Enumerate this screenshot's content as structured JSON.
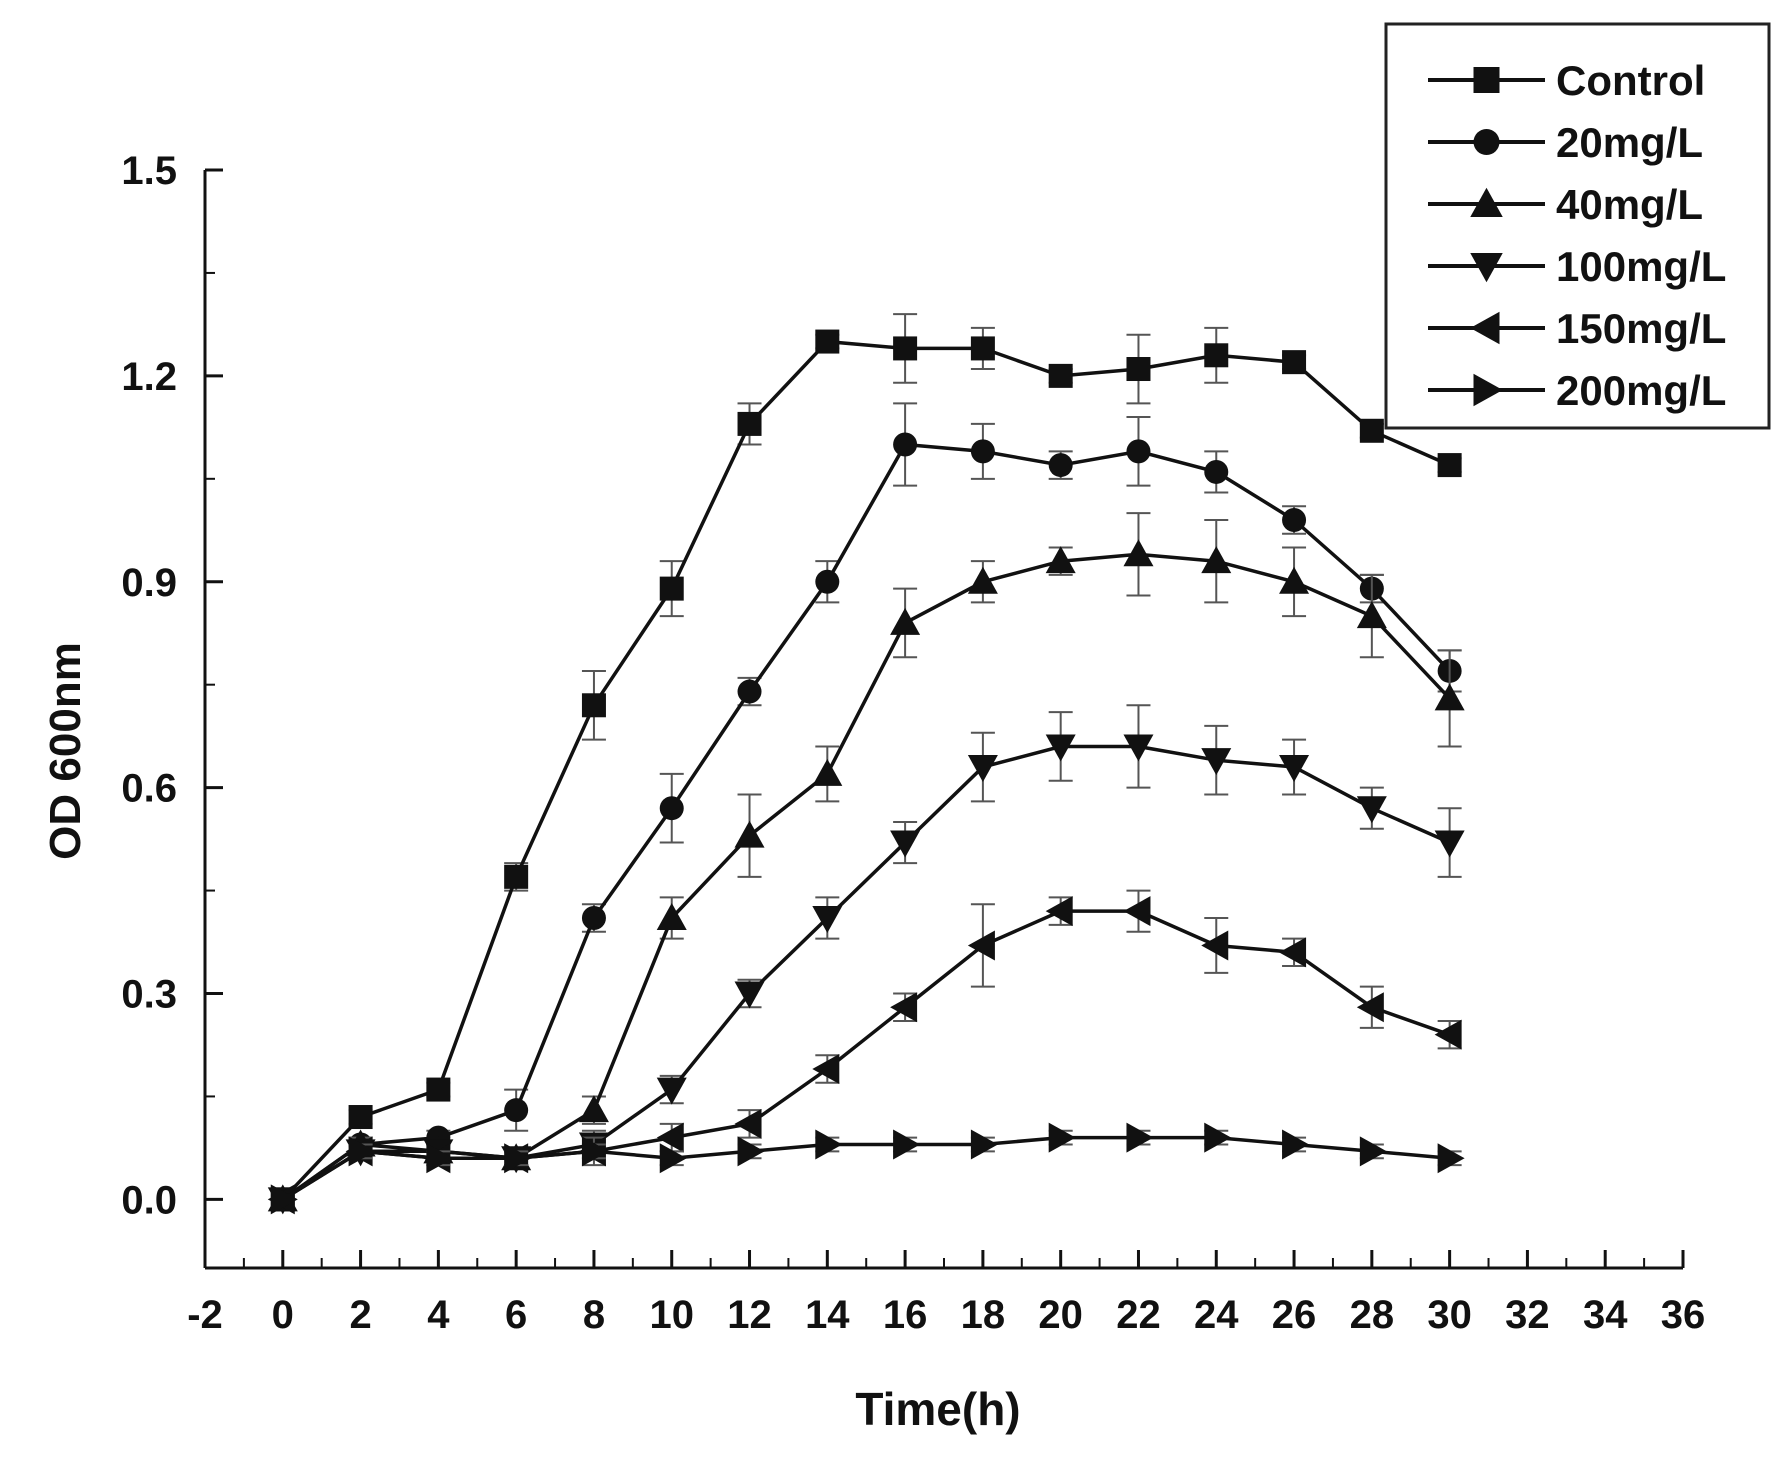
{
  "chart_data": {
    "type": "line",
    "title": "",
    "xlabel": "Time(h)",
    "ylabel": "OD 600nm",
    "xlim": [
      -2,
      36
    ],
    "ylim": [
      -0.1,
      1.5
    ],
    "xticks": [
      -2,
      0,
      2,
      4,
      6,
      8,
      10,
      12,
      14,
      16,
      18,
      20,
      22,
      24,
      26,
      28,
      30,
      32,
      34,
      36
    ],
    "xtick_labels": [
      "-2",
      "0",
      "2",
      "4",
      "6",
      "8",
      "10",
      "12",
      "14",
      "16",
      "18",
      "20",
      "22",
      "24",
      "26",
      "28",
      "30",
      "32",
      "34",
      "36"
    ],
    "yticks": [
      0.0,
      0.3,
      0.6,
      0.9,
      1.2,
      1.5
    ],
    "ytick_labels": [
      "0.0",
      "0.3",
      "0.6",
      "0.9",
      "1.2",
      "1.5"
    ],
    "grid": false,
    "legend_position": "top-right",
    "x": [
      0,
      2,
      4,
      6,
      8,
      10,
      12,
      14,
      16,
      18,
      20,
      22,
      24,
      26,
      28,
      30
    ],
    "series": [
      {
        "name": "Control",
        "marker": "square",
        "values": [
          0.0,
          0.12,
          0.16,
          0.47,
          0.72,
          0.89,
          1.13,
          1.25,
          1.24,
          1.24,
          1.2,
          1.21,
          1.23,
          1.22,
          1.12,
          1.07
        ],
        "errors": [
          0.0,
          0.01,
          0.01,
          0.02,
          0.05,
          0.04,
          0.03,
          0.01,
          0.05,
          0.03,
          0.01,
          0.05,
          0.04,
          0.01,
          0.01,
          0.01
        ]
      },
      {
        "name": "20mg/L",
        "marker": "circle",
        "values": [
          0.0,
          0.08,
          0.09,
          0.13,
          0.41,
          0.57,
          0.74,
          0.9,
          1.1,
          1.09,
          1.07,
          1.09,
          1.06,
          0.99,
          0.89,
          0.77
        ],
        "errors": [
          0.0,
          0.01,
          0.01,
          0.03,
          0.02,
          0.05,
          0.02,
          0.03,
          0.06,
          0.04,
          0.02,
          0.05,
          0.03,
          0.02,
          0.02,
          0.03
        ]
      },
      {
        "name": "40mg/L",
        "marker": "triangle-up",
        "values": [
          0.0,
          0.08,
          0.07,
          0.06,
          0.13,
          0.41,
          0.53,
          0.62,
          0.84,
          0.9,
          0.93,
          0.94,
          0.93,
          0.9,
          0.85,
          0.73
        ],
        "errors": [
          0.0,
          0.01,
          0.01,
          0.01,
          0.02,
          0.03,
          0.06,
          0.04,
          0.05,
          0.03,
          0.02,
          0.06,
          0.06,
          0.05,
          0.06,
          0.07
        ]
      },
      {
        "name": "100mg/L",
        "marker": "triangle-down",
        "values": [
          0.0,
          0.07,
          0.07,
          0.06,
          0.08,
          0.16,
          0.3,
          0.41,
          0.52,
          0.63,
          0.66,
          0.66,
          0.64,
          0.63,
          0.57,
          0.52
        ],
        "errors": [
          0.0,
          0.01,
          0.01,
          0.01,
          0.02,
          0.02,
          0.02,
          0.03,
          0.03,
          0.05,
          0.05,
          0.06,
          0.05,
          0.04,
          0.03,
          0.05
        ]
      },
      {
        "name": "150mg/L",
        "marker": "triangle-left",
        "values": [
          0.0,
          0.07,
          0.06,
          0.06,
          0.07,
          0.09,
          0.11,
          0.19,
          0.28,
          0.37,
          0.42,
          0.42,
          0.37,
          0.36,
          0.28,
          0.24
        ],
        "errors": [
          0.0,
          0.01,
          0.01,
          0.01,
          0.02,
          0.02,
          0.02,
          0.02,
          0.02,
          0.06,
          0.02,
          0.03,
          0.04,
          0.02,
          0.03,
          0.02
        ]
      },
      {
        "name": "200mg/L",
        "marker": "triangle-right",
        "values": [
          0.0,
          0.07,
          0.06,
          0.06,
          0.07,
          0.06,
          0.07,
          0.08,
          0.08,
          0.08,
          0.09,
          0.09,
          0.09,
          0.08,
          0.07,
          0.06
        ],
        "errors": [
          0.0,
          0.01,
          0.01,
          0.01,
          0.01,
          0.01,
          0.01,
          0.01,
          0.01,
          0.01,
          0.01,
          0.01,
          0.01,
          0.01,
          0.01,
          0.01
        ]
      }
    ]
  }
}
